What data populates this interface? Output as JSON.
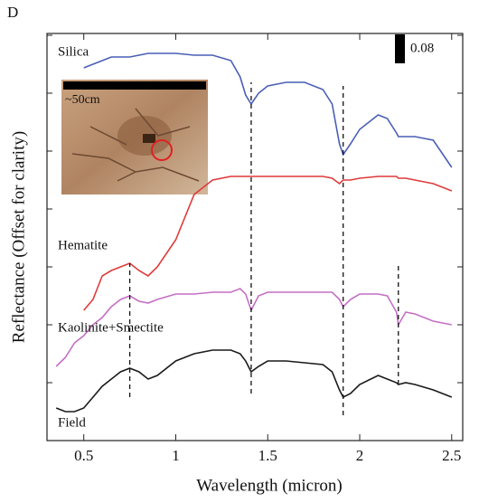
{
  "chart_data": {
    "type": "line",
    "panel_label": "D",
    "xlabel": "Wavelength (micron)",
    "ylabel": "Reflectance (Offset for clarity)",
    "xlim": [
      0.3,
      2.56
    ],
    "ylim": [
      0,
      1.125
    ],
    "xticks": [
      0.5,
      1.0,
      1.5,
      2.0,
      2.5
    ],
    "yticks": [
      0,
      0.16,
      0.32,
      0.48,
      0.64,
      0.8,
      0.96,
      1.12
    ],
    "x": [
      0.35,
      0.4,
      0.45,
      0.5,
      0.55,
      0.6,
      0.65,
      0.7,
      0.75,
      0.8,
      0.85,
      0.9,
      1.0,
      1.1,
      1.2,
      1.3,
      1.35,
      1.38,
      1.41,
      1.45,
      1.5,
      1.6,
      1.7,
      1.8,
      1.85,
      1.89,
      1.91,
      1.95,
      2.0,
      2.1,
      2.15,
      2.2,
      2.21,
      2.25,
      2.3,
      2.4,
      2.5
    ],
    "series": [
      {
        "name": "Silica",
        "color": "#4a5fb5",
        "values": [
          null,
          null,
          null,
          1.03,
          1.04,
          1.05,
          1.06,
          1.06,
          1.06,
          1.065,
          1.07,
          1.07,
          1.07,
          1.065,
          1.065,
          1.05,
          1.005,
          0.955,
          0.93,
          0.96,
          0.98,
          0.99,
          0.99,
          0.97,
          0.93,
          0.82,
          0.79,
          0.82,
          0.86,
          0.9,
          0.89,
          0.85,
          0.84,
          0.84,
          0.84,
          0.83,
          0.755
        ]
      },
      {
        "name": "Hematite",
        "color": "#e03a3a",
        "values": [
          null,
          null,
          null,
          0.36,
          0.39,
          0.455,
          0.47,
          0.48,
          0.49,
          0.47,
          0.455,
          0.48,
          0.555,
          0.68,
          0.72,
          0.73,
          0.73,
          0.73,
          0.73,
          0.73,
          0.73,
          0.73,
          0.73,
          0.73,
          0.725,
          0.71,
          0.72,
          0.72,
          0.725,
          0.73,
          0.73,
          0.73,
          0.725,
          0.725,
          0.72,
          0.71,
          0.69
        ]
      },
      {
        "name": "Kaolinite+Smectite",
        "color": "#c46fc4",
        "values": [
          0.205,
          0.23,
          0.27,
          0.29,
          0.32,
          0.34,
          0.37,
          0.39,
          0.4,
          0.385,
          0.38,
          0.39,
          0.405,
          0.405,
          0.41,
          0.41,
          0.42,
          0.405,
          0.36,
          0.4,
          0.41,
          0.41,
          0.41,
          0.41,
          0.41,
          0.39,
          0.37,
          0.39,
          0.405,
          0.405,
          0.4,
          0.355,
          0.32,
          0.355,
          0.35,
          0.33,
          0.32
        ]
      },
      {
        "name": "Field",
        "color": "#1a1a1a",
        "values": [
          0.09,
          0.08,
          0.08,
          0.09,
          0.12,
          0.15,
          0.17,
          0.19,
          0.2,
          0.19,
          0.17,
          0.18,
          0.22,
          0.24,
          0.25,
          0.25,
          0.24,
          0.22,
          0.19,
          0.205,
          0.22,
          0.22,
          0.215,
          0.21,
          0.19,
          0.14,
          0.12,
          0.13,
          0.155,
          0.18,
          0.17,
          0.16,
          0.155,
          0.16,
          0.155,
          0.14,
          0.12
        ]
      }
    ],
    "reference_lines": [
      {
        "x": 0.75,
        "y": [
          0.12,
          0.49
        ]
      },
      {
        "x": 1.41,
        "y": [
          0.13,
          0.99
        ]
      },
      {
        "x": 1.91,
        "y": [
          0.07,
          0.98
        ]
      },
      {
        "x": 2.21,
        "y": [
          0.155,
          0.49
        ]
      }
    ],
    "scale_bar": {
      "value": 0.08
    },
    "inset": {
      "label": "~50cm"
    }
  }
}
